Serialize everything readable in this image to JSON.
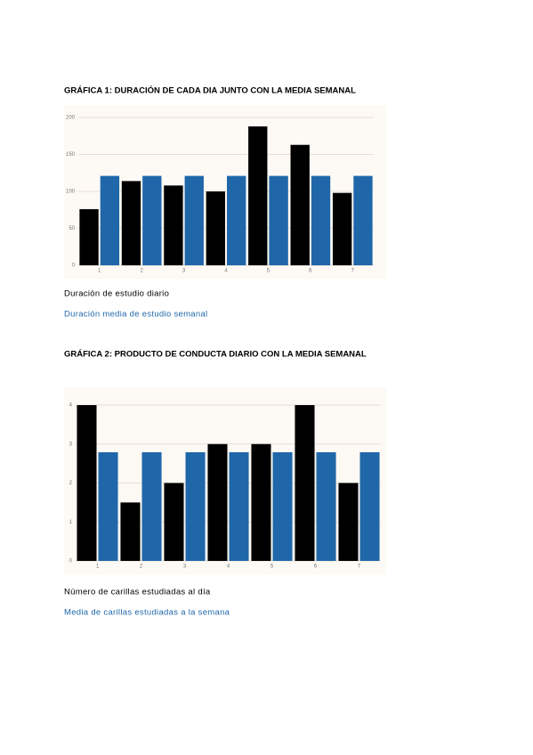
{
  "chart_data": [
    {
      "type": "bar",
      "title": "GRÁFICA 1: DURACIÓN DE CADA DIA JUNTO CON LA MEDIA SEMANAL",
      "categories": [
        "1",
        "2",
        "3",
        "4",
        "5",
        "6",
        "7"
      ],
      "series": [
        {
          "name": "Duración de estudio diario",
          "color": "#000000",
          "values": [
            76,
            114,
            108,
            100,
            188,
            163,
            98
          ]
        },
        {
          "name": "Duración media de estudio semanal",
          "color": "#1f67a9",
          "values": [
            121,
            121,
            121,
            121,
            121,
            121,
            121
          ]
        }
      ],
      "ylim": [
        0,
        200
      ],
      "yticks": [
        0,
        50,
        100,
        150,
        200
      ],
      "grid": true,
      "background": "#fdf9f4"
    },
    {
      "type": "bar",
      "title": "GRÁFICA 2: PRODUCTO DE CONDUCTA DIARIO CON LA MEDIA SEMANAL",
      "categories": [
        "1",
        "2",
        "3",
        "4",
        "5",
        "6",
        "7"
      ],
      "series": [
        {
          "name": "Número de carillas estudiadas al día",
          "color": "#000000",
          "values": [
            4,
            1.5,
            2,
            3,
            3,
            4,
            2
          ]
        },
        {
          "name": "Media de carillas estudiadas a la semana",
          "color": "#1f67a9",
          "values": [
            2.79,
            2.79,
            2.79,
            2.79,
            2.79,
            2.79,
            2.79
          ]
        }
      ],
      "ylim": [
        0,
        4
      ],
      "yticks": [
        0,
        1,
        2,
        3,
        4
      ],
      "grid": true,
      "background": "#fdf9f4"
    }
  ]
}
